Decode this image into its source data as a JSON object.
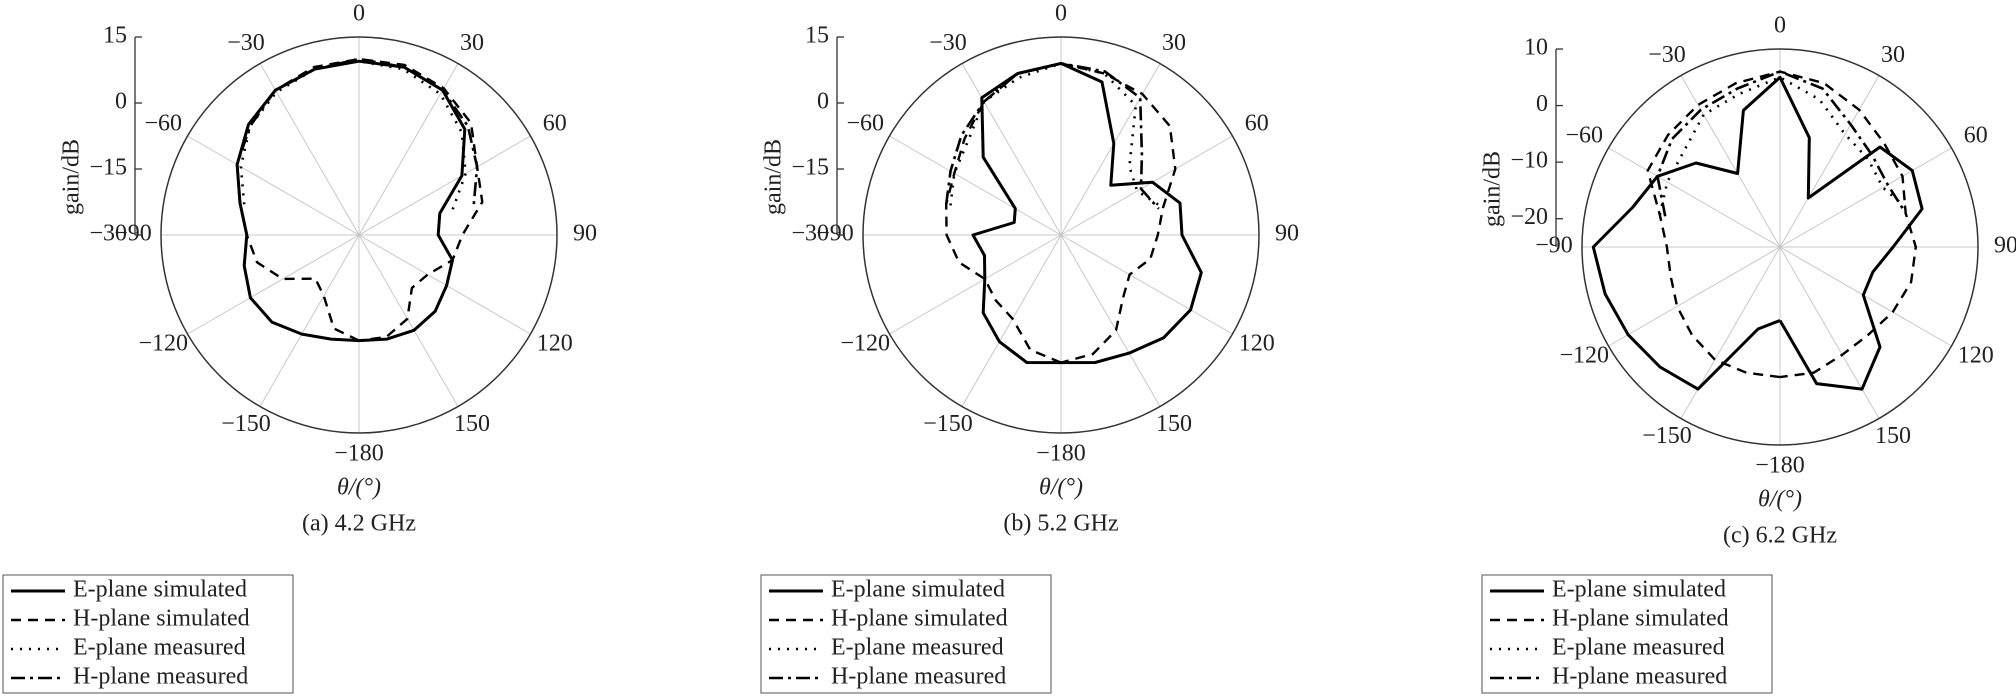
{
  "chart_data": [
    {
      "type": "polar",
      "title": "(a) 4.2 GHz",
      "theta_label": "θ/(°)",
      "r_label": "gain/dB",
      "theta": [
        -180,
        -165,
        -150,
        -135,
        -120,
        -105,
        -90,
        -75,
        -60,
        -45,
        -30,
        -15,
        0,
        15,
        30,
        45,
        60,
        75,
        90,
        105,
        120,
        135,
        150,
        165,
        180
      ],
      "thetaticks": [
        0,
        30,
        60,
        90,
        120,
        150,
        {
          "value": -180,
          "label": "−180"
        },
        {
          "value": -150,
          "label": "−150"
        },
        {
          "value": -120,
          "label": "−120"
        },
        {
          "value": -90,
          "label": "−90"
        },
        {
          "value": -60,
          "label": "−60"
        },
        {
          "value": -30,
          "label": "−30"
        }
      ],
      "rlim": [
        -30,
        15
      ],
      "rticks": [
        {
          "value": -30,
          "label": "−30"
        },
        {
          "value": -15,
          "label": "−15"
        },
        0,
        15
      ],
      "legend": "below",
      "series": [
        {
          "name": "E-plane simulated",
          "color": "#000000",
          "style": "solid",
          "values": [
            -6,
            -5.5,
            -4,
            -2,
            -1.5,
            -3,
            -4.5,
            -2,
            2,
            5.5,
            8,
            9,
            9.5,
            9.5,
            8,
            4,
            -3,
            -11,
            -12,
            -8,
            -7,
            -5.5,
            -5,
            -5.5,
            -6
          ]
        },
        {
          "name": "H-plane simulated",
          "color": "#000000",
          "style": "dashed",
          "values": [
            -6,
            -8,
            -14,
            -16,
            -10,
            -6,
            -4.5,
            -2,
            2,
            5.5,
            8,
            9.5,
            10,
            10,
            8.5,
            6,
            1,
            -1,
            -6.5,
            -8,
            -12,
            -13,
            -8,
            -6,
            -6
          ]
        },
        {
          "name": "E-plane measured",
          "color": "#000000",
          "style": "dotted",
          "values": [
            null,
            null,
            null,
            null,
            null,
            null,
            null,
            -3,
            1,
            5,
            7.5,
            9,
            9.5,
            9,
            7,
            3,
            -2,
            -8,
            null,
            null,
            null,
            null,
            null,
            null,
            null
          ]
        },
        {
          "name": "H-plane measured",
          "color": "#000000",
          "style": "dashdot",
          "values": [
            null,
            null,
            null,
            null,
            null,
            null,
            null,
            -2,
            2,
            5,
            8,
            9,
            10,
            9.5,
            8,
            5,
            1,
            -3,
            null,
            null,
            null,
            null,
            null,
            null,
            null
          ]
        }
      ]
    },
    {
      "type": "polar",
      "title": "(b) 5.2 GHz",
      "theta_label": "θ/(°)",
      "r_label": "gain/dB",
      "theta": [
        -180,
        -165,
        -150,
        -135,
        -120,
        -105,
        -90,
        -75,
        -60,
        -45,
        -30,
        -15,
        0,
        15,
        30,
        45,
        60,
        75,
        90,
        105,
        120,
        135,
        150,
        165,
        180
      ],
      "thetaticks": [
        0,
        30,
        60,
        90,
        120,
        150,
        {
          "value": -180,
          "label": "−180"
        },
        {
          "value": -150,
          "label": "−150"
        },
        {
          "value": -120,
          "label": "−120"
        },
        {
          "value": -90,
          "label": "−90"
        },
        {
          "value": -60,
          "label": "−60"
        },
        {
          "value": -30,
          "label": "−30"
        }
      ],
      "rlim": [
        -30,
        15
      ],
      "rticks": [
        {
          "value": -30,
          "label": "−30"
        },
        {
          "value": -15,
          "label": "−15"
        },
        0,
        15
      ],
      "legend": "below",
      "series": [
        {
          "name": "E-plane simulated",
          "color": "#000000",
          "style": "solid",
          "values": [
            -1,
            0,
            -2,
            -5,
            -10,
            -12,
            -10,
            -19,
            -18,
            -5,
            6,
            8,
            9,
            6,
            -6,
            -14,
            -6,
            -2,
            -2.5,
            3,
            4,
            3,
            1,
            0,
            -1
          ]
        },
        {
          "name": "H-plane simulated",
          "color": "#000000",
          "style": "dashed",
          "values": [
            -1,
            -3,
            -8,
            -9,
            -10,
            -6,
            -4,
            -3,
            -2,
            1,
            5,
            8,
            9,
            8,
            7,
            5,
            0,
            -6,
            -8,
            -9,
            -12,
            -10,
            -5,
            -2,
            -1
          ]
        },
        {
          "name": "E-plane measured",
          "color": "#000000",
          "style": "dotted",
          "values": [
            null,
            null,
            null,
            null,
            null,
            null,
            null,
            -4,
            -2,
            0,
            5,
            7,
            9,
            8,
            4,
            -8,
            -10,
            -6,
            null,
            null,
            null,
            null,
            null,
            null,
            null
          ]
        },
        {
          "name": "H-plane measured",
          "color": "#000000",
          "style": "dashdot",
          "values": [
            null,
            null,
            null,
            null,
            null,
            null,
            null,
            -3,
            -1,
            2,
            5,
            8,
            9,
            8.5,
            6,
            -4,
            -9,
            -7,
            null,
            null,
            null,
            null,
            null,
            null,
            null
          ]
        }
      ]
    },
    {
      "type": "polar",
      "title": "(c) 6.2 GHz",
      "theta_label": "θ/(°)",
      "r_label": "gain/dB",
      "theta": [
        -180,
        -165,
        -150,
        -135,
        -120,
        -105,
        -90,
        -75,
        -60,
        -45,
        -30,
        -15,
        0,
        15,
        30,
        45,
        60,
        75,
        90,
        105,
        120,
        135,
        150,
        165,
        180
      ],
      "thetaticks": [
        0,
        30,
        60,
        90,
        120,
        150,
        {
          "value": -180,
          "label": "−180"
        },
        {
          "value": -150,
          "label": "−150"
        },
        {
          "value": -120,
          "label": "−120"
        },
        {
          "value": -90,
          "label": "−90"
        },
        {
          "value": -60,
          "label": "−60"
        },
        {
          "value": -30,
          "label": "−30"
        }
      ],
      "rlim": [
        -25,
        10
      ],
      "rticks": [
        {
          "value": -20,
          "label": "−20"
        },
        {
          "value": -10,
          "label": "−10"
        },
        0,
        10
      ],
      "legend": "below",
      "series": [
        {
          "name": "E-plane simulated",
          "color": "#000000",
          "style": "solid",
          "values": [
            -12,
            -10,
            4,
            5,
            6,
            7,
            8,
            2,
            0,
            -4,
            -10,
            0,
            5,
            -5,
            -15,
            0,
            2,
            1,
            -5,
            -8,
            -8,
            0,
            4,
            0,
            -12
          ]
        },
        {
          "name": "H-plane simulated",
          "color": "#000000",
          "style": "dashed",
          "values": [
            -2,
            -2,
            -2,
            -3,
            -4,
            -5,
            -5,
            -3,
            2,
            3,
            4,
            5,
            6,
            5,
            3,
            1,
            0,
            -2,
            -1,
            -1,
            -2,
            -3,
            -3,
            -2,
            -2
          ]
        },
        {
          "name": "E-plane measured",
          "color": "#000000",
          "style": "dotted",
          "values": [
            null,
            null,
            null,
            null,
            null,
            null,
            null,
            -3,
            -2,
            -1,
            2,
            3,
            5,
            2,
            -2,
            -3,
            -4,
            -1,
            null,
            null,
            null,
            null,
            null,
            null,
            null
          ]
        },
        {
          "name": "H-plane measured",
          "color": "#000000",
          "style": "dashdot",
          "values": [
            null,
            null,
            null,
            null,
            null,
            null,
            null,
            -4,
            0,
            2,
            3,
            4,
            6,
            4,
            0,
            -2,
            -3,
            -2,
            null,
            null,
            null,
            null,
            null,
            null,
            null
          ]
        }
      ]
    }
  ]
}
